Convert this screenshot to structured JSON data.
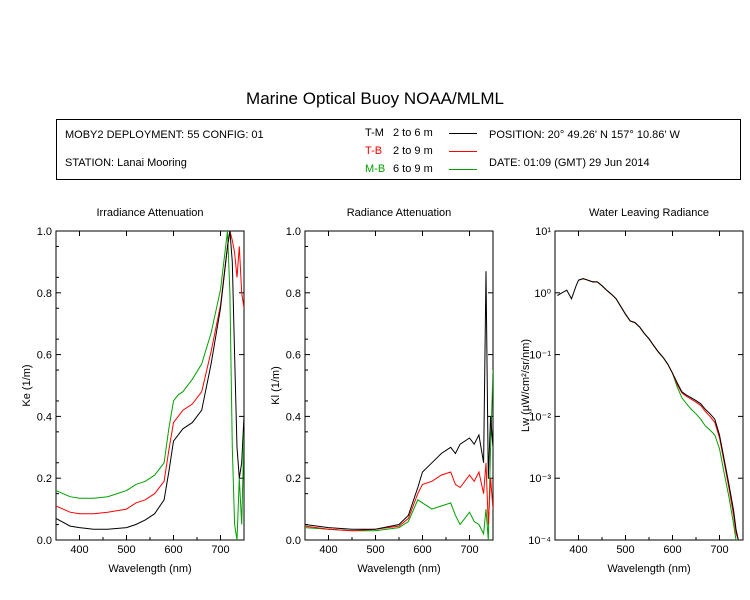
{
  "title": "Marine Optical Buoy NOAA/MLML",
  "info": {
    "deployment": "MOBY2 DEPLOYMENT: 55 CONFIG: 01",
    "station": "STATION: Lanai Mooring",
    "position": "POSITION: 20° 49.26' N   157° 10.86' W",
    "date": "DATE: 01:09 (GMT) 29 Jun 2014"
  },
  "legend": [
    {
      "label": "T-M",
      "range": "2 to 6  m",
      "color": "#000000"
    },
    {
      "label": "T-B",
      "range": "2 to 9  m",
      "color": "#ff0000"
    },
    {
      "label": "M-B",
      "range": "6 to 9  m",
      "color": "#00a000"
    }
  ],
  "chart_data": [
    {
      "type": "line",
      "title": "Irradiance Attenuation",
      "xlabel": "Wavelength (nm)",
      "ylabel": "Ke  (1/m)",
      "xlim": [
        350,
        750
      ],
      "ylim": [
        0,
        1.0
      ],
      "xticks": [
        "400",
        "500",
        "600",
        "700"
      ],
      "yticks": [
        "0.0",
        "0.2",
        "0.4",
        "0.6",
        "0.8",
        "1.0"
      ],
      "series": [
        {
          "name": "T-M",
          "color": "#000000",
          "x": [
            350,
            380,
            400,
            430,
            460,
            500,
            520,
            540,
            560,
            580,
            590,
            600,
            610,
            620,
            640,
            660,
            680,
            700,
            715,
            720,
            725,
            730,
            735,
            740,
            745,
            750
          ],
          "y": [
            0.07,
            0.045,
            0.04,
            0.035,
            0.035,
            0.04,
            0.05,
            0.065,
            0.085,
            0.13,
            0.22,
            0.32,
            0.34,
            0.36,
            0.38,
            0.42,
            0.57,
            0.75,
            0.95,
            1.0,
            0.9,
            0.6,
            0.3,
            0.2,
            0.25,
            0.4
          ]
        },
        {
          "name": "T-B",
          "color": "#ff0000",
          "x": [
            350,
            380,
            400,
            430,
            460,
            500,
            520,
            540,
            560,
            580,
            590,
            600,
            610,
            620,
            640,
            660,
            680,
            700,
            715,
            720,
            725,
            730,
            735,
            740,
            745,
            750
          ],
          "y": [
            0.11,
            0.09,
            0.085,
            0.085,
            0.09,
            0.1,
            0.12,
            0.13,
            0.15,
            0.19,
            0.29,
            0.38,
            0.4,
            0.42,
            0.44,
            0.48,
            0.61,
            0.76,
            0.95,
            1.0,
            0.97,
            0.93,
            0.85,
            0.95,
            0.8,
            0.75
          ]
        },
        {
          "name": "M-B",
          "color": "#00a000",
          "x": [
            350,
            380,
            400,
            430,
            460,
            500,
            520,
            540,
            560,
            580,
            590,
            600,
            610,
            620,
            640,
            660,
            680,
            700,
            715,
            720,
            725,
            730,
            735,
            740,
            745,
            750
          ],
          "y": [
            0.16,
            0.14,
            0.135,
            0.135,
            0.14,
            0.16,
            0.18,
            0.19,
            0.21,
            0.25,
            0.36,
            0.45,
            0.47,
            0.48,
            0.52,
            0.57,
            0.67,
            0.81,
            1.0,
            0.8,
            0.3,
            0.05,
            0.0,
            0.2,
            0.05,
            0.35
          ]
        }
      ]
    },
    {
      "type": "line",
      "title": "Radiance Attenuation",
      "xlabel": "Wavelength (nm)",
      "ylabel": "Kl  (1/m)",
      "xlim": [
        350,
        750
      ],
      "ylim": [
        0,
        1.0
      ],
      "xticks": [
        "400",
        "500",
        "600",
        "700"
      ],
      "yticks": [
        "0.0",
        "0.2",
        "0.4",
        "0.6",
        "0.8",
        "1.0"
      ],
      "series": [
        {
          "name": "T-M",
          "color": "#000000",
          "x": [
            350,
            400,
            450,
            500,
            550,
            570,
            590,
            600,
            620,
            640,
            660,
            670,
            680,
            700,
            710,
            720,
            730,
            735,
            740,
            745,
            750
          ],
          "y": [
            0.05,
            0.04,
            0.035,
            0.035,
            0.05,
            0.08,
            0.17,
            0.22,
            0.25,
            0.28,
            0.3,
            0.28,
            0.31,
            0.33,
            0.31,
            0.34,
            0.25,
            0.87,
            0.2,
            0.4,
            0.3
          ]
        },
        {
          "name": "T-B",
          "color": "#ff0000",
          "x": [
            350,
            400,
            450,
            500,
            550,
            570,
            590,
            600,
            620,
            640,
            660,
            670,
            680,
            700,
            710,
            720,
            730,
            735,
            740,
            745,
            750
          ],
          "y": [
            0.045,
            0.035,
            0.03,
            0.035,
            0.045,
            0.07,
            0.15,
            0.18,
            0.19,
            0.21,
            0.22,
            0.18,
            0.17,
            0.21,
            0.19,
            0.22,
            0.15,
            0.25,
            0.05,
            0.2,
            0.1
          ]
        },
        {
          "name": "M-B",
          "color": "#00a000",
          "x": [
            350,
            400,
            450,
            500,
            550,
            570,
            590,
            600,
            620,
            640,
            660,
            670,
            680,
            700,
            710,
            720,
            730,
            735,
            740,
            745,
            750
          ],
          "y": [
            0.04,
            0.035,
            0.03,
            0.03,
            0.04,
            0.06,
            0.13,
            0.12,
            0.1,
            0.11,
            0.12,
            0.08,
            0.05,
            0.09,
            0.06,
            0.05,
            0.02,
            0.1,
            0.0,
            0.3,
            0.55
          ]
        }
      ]
    },
    {
      "type": "line",
      "title": "Water Leaving Radiance",
      "xlabel": "Wavelength (nm)",
      "ylabel": "Lw  (µW/cm²/sr/nm)",
      "xlim": [
        350,
        750
      ],
      "ylim": [
        0.0001,
        10
      ],
      "log_y": true,
      "xticks": [
        "400",
        "500",
        "600",
        "700"
      ],
      "yticks": [
        "10⁻⁴",
        "10⁻³",
        "10⁻²",
        "10⁻¹",
        "10⁰",
        "10¹"
      ],
      "series": [
        {
          "name": "T-M",
          "color": "#000000",
          "x": [
            355,
            365,
            375,
            385,
            395,
            400,
            410,
            420,
            430,
            440,
            450,
            460,
            470,
            480,
            490,
            500,
            510,
            520,
            530,
            540,
            550,
            560,
            570,
            580,
            590,
            600,
            610,
            620,
            630,
            640,
            650,
            660,
            670,
            680,
            690,
            700,
            710,
            720,
            730,
            735,
            740
          ],
          "y": [
            0.9,
            1.0,
            1.1,
            0.8,
            1.3,
            1.6,
            1.7,
            1.6,
            1.5,
            1.5,
            1.3,
            1.1,
            0.95,
            0.8,
            0.6,
            0.45,
            0.35,
            0.33,
            0.28,
            0.22,
            0.18,
            0.14,
            0.11,
            0.09,
            0.07,
            0.05,
            0.035,
            0.025,
            0.022,
            0.02,
            0.018,
            0.016,
            0.013,
            0.011,
            0.009,
            0.005,
            0.002,
            0.0008,
            0.0003,
            0.00015,
            0.0001
          ]
        },
        {
          "name": "T-B",
          "color": "#ff0000",
          "x": [
            400,
            410,
            420,
            430,
            440,
            450,
            460,
            470,
            480,
            490,
            500,
            510,
            520,
            530,
            540,
            550,
            560,
            570,
            580,
            590,
            600,
            610,
            620,
            630,
            640,
            650,
            660,
            670,
            680,
            690,
            700,
            710,
            720,
            730,
            735,
            740
          ],
          "y": [
            1.6,
            1.7,
            1.6,
            1.5,
            1.5,
            1.3,
            1.1,
            0.95,
            0.8,
            0.6,
            0.45,
            0.35,
            0.33,
            0.28,
            0.22,
            0.18,
            0.14,
            0.11,
            0.09,
            0.07,
            0.05,
            0.033,
            0.024,
            0.021,
            0.019,
            0.017,
            0.015,
            0.012,
            0.01,
            0.008,
            0.0045,
            0.0018,
            0.0007,
            0.00025,
            0.00013,
            0.0001
          ]
        },
        {
          "name": "M-B",
          "color": "#00a000",
          "x": [
            400,
            410,
            420,
            430,
            440,
            450,
            460,
            470,
            480,
            490,
            500,
            510,
            520,
            530,
            540,
            550,
            560,
            570,
            580,
            590,
            600,
            610,
            620,
            630,
            640,
            650,
            660,
            670,
            680,
            690,
            700,
            710,
            720,
            730,
            735,
            740
          ],
          "y": [
            1.6,
            1.7,
            1.6,
            1.5,
            1.5,
            1.3,
            1.1,
            0.95,
            0.8,
            0.6,
            0.45,
            0.35,
            0.33,
            0.28,
            0.22,
            0.18,
            0.14,
            0.11,
            0.09,
            0.07,
            0.05,
            0.03,
            0.02,
            0.016,
            0.013,
            0.011,
            0.009,
            0.007,
            0.006,
            0.005,
            0.003,
            0.0012,
            0.0005,
            0.00018,
            0.0001,
            0.0001
          ]
        }
      ]
    }
  ]
}
